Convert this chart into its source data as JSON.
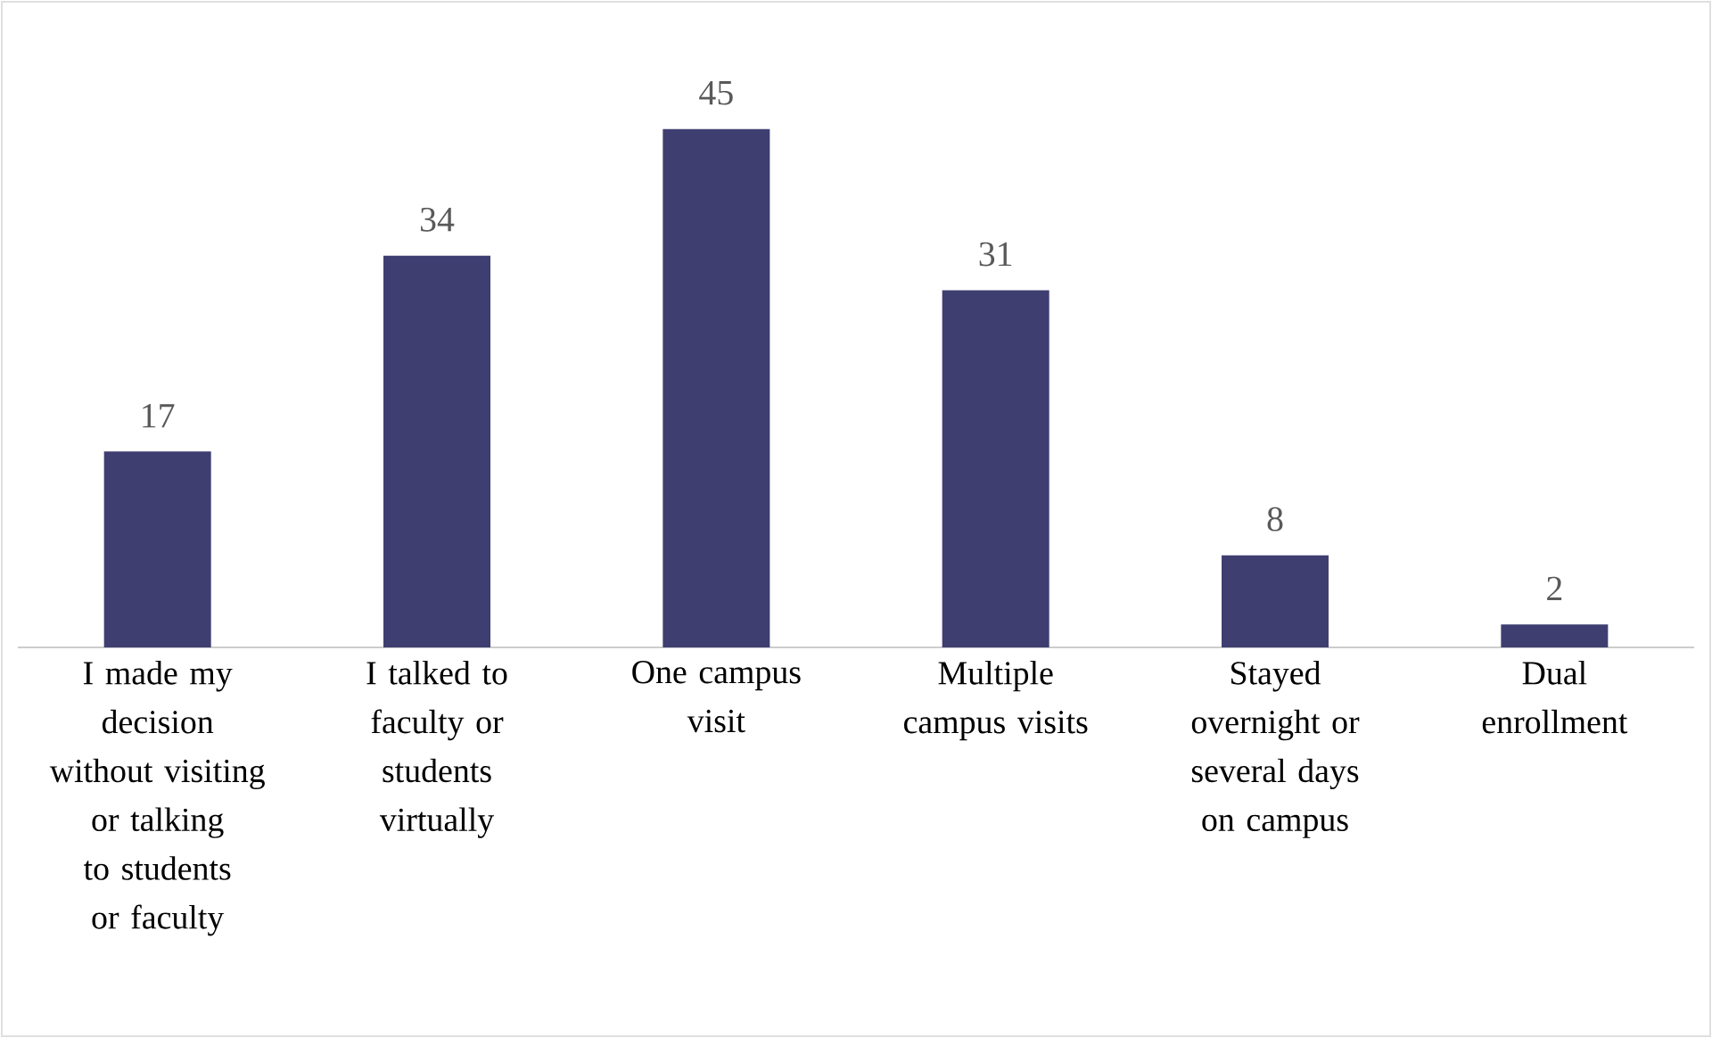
{
  "chart_data": {
    "type": "bar",
    "categories": [
      "I made my decision without visiting or talking to students or faculty",
      "I talked to faculty or students virtually",
      "One campus visit",
      "Multiple campus visits",
      "Stayed overnight or several days on campus",
      "Dual enrollment"
    ],
    "values": [
      17,
      34,
      45,
      31,
      8,
      2
    ],
    "color": "#3f3e71",
    "data_labels": true
  }
}
